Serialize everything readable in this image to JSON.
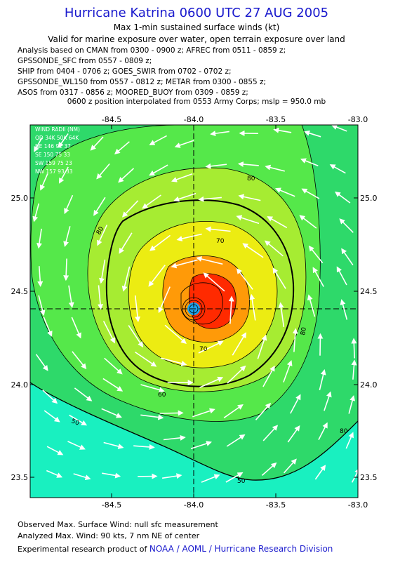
{
  "header": {
    "title": "Hurricane Katrina 0600 UTC 27 AUG 2005",
    "subtitle": "Max 1-min sustained surface winds (kt)",
    "validity": "Valid for marine exposure over water, open terrain exposure over land",
    "analysis_lines": [
      "Analysis based on  CMAN from 0300 - 0900 z;  AFREC from 0511 - 0859 z;",
      "GPSSONDE_SFC from 0557 - 0809 z;",
      "SHIP from 0404 - 0706 z;  GOES_SWIR from 0702 - 0702 z;",
      "GPSSONDE_WL150 from 0557 - 0812 z;  METAR from 0300 - 0855 z;",
      "ASOS from 0317 - 0856 z;  MOORED_BUOY from 0309 - 0859 z;"
    ],
    "position_note": "0600 z position interpolated from 0553 Army Corps; mslp = 950.0 mb"
  },
  "map": {
    "lon_ticks": [
      "-84.5",
      "-84.0",
      "-83.5",
      "-83.0"
    ],
    "lat_ticks": [
      "25.0",
      "24.5",
      "24.0",
      "23.5"
    ],
    "lon_range": [
      -84.88,
      -83.0
    ],
    "lat_range": [
      23.38,
      25.38
    ],
    "center": {
      "lon": -84.0,
      "lat": 24.38
    },
    "contour_labels": [
      "80",
      "80",
      "80",
      "70",
      "70",
      "60",
      "50",
      "50",
      "80"
    ],
    "wind_radii": {
      "title": "WIND RADII (NM)",
      "header": "QD  34K  50K  64K",
      "rows": [
        "NE  146  92  37",
        "SE  150  75  33",
        "SW  159  75  23",
        "NW  157  93  33"
      ]
    },
    "colors": {
      "ocean_far": "#19f0c0",
      "band_50_60": "#2ed96a",
      "band_60_70": "#55e84a",
      "band_70_80": "#a6ec32",
      "band_80_90": "#ecec12",
      "band_90_100": "#ff9a08",
      "core": "#ff2a00",
      "eye": "#1aa4ee"
    }
  },
  "footer": {
    "observed": "Observed Max. Surface Wind: null sfc measurement",
    "analyzed": "Analyzed Max. Wind: 90 kts, 7 nm NE of center",
    "credit_prefix": "Experimental research product of ",
    "credit_org": "NOAA / AOML / Hurricane Research Division"
  }
}
